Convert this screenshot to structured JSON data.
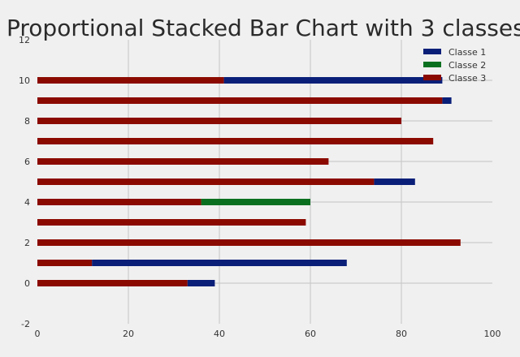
{
  "chart_data": {
    "type": "bar",
    "orientation": "horizontal",
    "stacked": true,
    "title": "Proportional Stacked Bar Chart with 3 classes",
    "xlabel": "",
    "ylabel": "",
    "xlim": [
      0,
      100
    ],
    "ylim": [
      -2,
      12
    ],
    "xticks": [
      0,
      20,
      40,
      60,
      80,
      100
    ],
    "yticks": [
      -2,
      0,
      2,
      4,
      6,
      8,
      10,
      12
    ],
    "grid": true,
    "legend_position": "top-right",
    "categories": [
      0,
      1,
      2,
      3,
      4,
      5,
      6,
      7,
      8,
      9,
      10
    ],
    "series": [
      {
        "name": "Classe 3",
        "color": "#8b0a00",
        "values": [
          33,
          12,
          93,
          59,
          36,
          74,
          64,
          87,
          80,
          89,
          41
        ]
      },
      {
        "name": "Classe 2",
        "color": "#0a7020",
        "values": [
          0,
          0,
          0,
          0,
          24,
          0,
          0,
          0,
          0,
          0,
          0
        ]
      },
      {
        "name": "Classe 1",
        "color": "#0a1f78",
        "values": [
          6,
          56,
          0,
          0,
          0,
          9,
          0,
          0,
          0,
          2,
          48
        ]
      }
    ],
    "legend_order": [
      "Classe 1",
      "Classe 2",
      "Classe 3"
    ]
  }
}
